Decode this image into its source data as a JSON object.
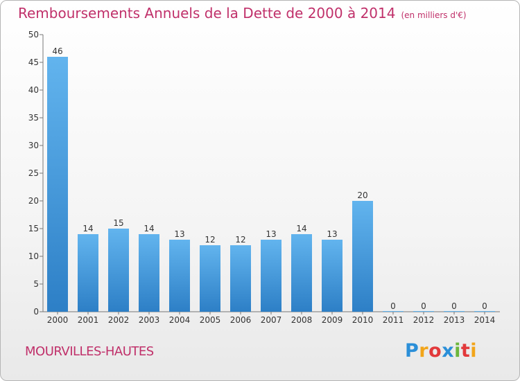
{
  "header": {
    "title": "Remboursements Annuels de la Dette de 2000 à 2014",
    "unit": "(en milliers d'€)"
  },
  "footer": {
    "commune": "MOURVILLES-HAUTES",
    "logo_letters": [
      "P",
      "r",
      "o",
      "x",
      "i",
      "t",
      "i"
    ]
  },
  "colors": {
    "title": "#c0306a",
    "bar_top": "#62b4ee",
    "bar_bottom": "#2d7fc6",
    "axis": "#777777",
    "grid": "#888888"
  },
  "chart_data": {
    "type": "bar",
    "title": "Remboursements Annuels de la Dette de 2000 à 2014",
    "xlabel": "",
    "ylabel": "",
    "categories": [
      "2000",
      "2001",
      "2002",
      "2003",
      "2004",
      "2005",
      "2006",
      "2007",
      "2008",
      "2009",
      "2010",
      "2011",
      "2012",
      "2013",
      "2014"
    ],
    "values": [
      46,
      14,
      15,
      14,
      13,
      12,
      12,
      13,
      14,
      13,
      20,
      0,
      0,
      0,
      0
    ],
    "ylim": [
      0,
      50
    ],
    "yticks": [
      0,
      5,
      10,
      15,
      20,
      25,
      30,
      35,
      40,
      45,
      50
    ],
    "grid": false,
    "data_labels": true
  }
}
